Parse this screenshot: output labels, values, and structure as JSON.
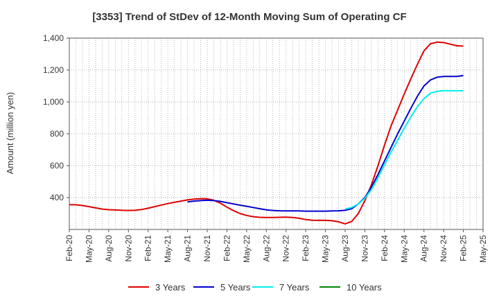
{
  "chart_data": {
    "type": "line",
    "title": "[3353]  Trend of StDev of 12-Month Moving Sum of Operating CF",
    "xlabel": "",
    "ylabel": "Amount (million yen)",
    "ylim": [
      200,
      1400
    ],
    "yticks": [
      400,
      600,
      800,
      1000,
      1200,
      1400
    ],
    "ytick_labels": [
      "400",
      "600",
      "800",
      "1,000",
      "1,200",
      "1,400"
    ],
    "x_tick_labels": [
      "Feb-20",
      "May-20",
      "Aug-20",
      "Nov-20",
      "Feb-21",
      "May-21",
      "Aug-21",
      "Nov-21",
      "Feb-22",
      "May-22",
      "Aug-22",
      "Nov-22",
      "Feb-23",
      "May-23",
      "Aug-23",
      "Nov-23",
      "Feb-24",
      "May-24",
      "Aug-24",
      "Nov-24",
      "Feb-25",
      "May-25"
    ],
    "grid": true,
    "legend_position": "bottom",
    "colors": {
      "3 Years": "#dd0000",
      "5 Years": "#0000cc",
      "7 Years": "#00eeee",
      "10 Years": "#008800"
    },
    "series": [
      {
        "name": "3 Years",
        "color": "#dd0000",
        "points": [
          [
            "Feb-20",
            355
          ],
          [
            "Mar-20",
            355
          ],
          [
            "Apr-20",
            350
          ],
          [
            "May-20",
            343
          ],
          [
            "Jun-20",
            335
          ],
          [
            "Jul-20",
            328
          ],
          [
            "Aug-20",
            324
          ],
          [
            "Sep-20",
            322
          ],
          [
            "Oct-20",
            320
          ],
          [
            "Nov-20",
            319
          ],
          [
            "Dec-20",
            320
          ],
          [
            "Jan-21",
            325
          ],
          [
            "Feb-21",
            333
          ],
          [
            "Mar-21",
            343
          ],
          [
            "Apr-21",
            353
          ],
          [
            "May-21",
            362
          ],
          [
            "Jun-21",
            370
          ],
          [
            "Jul-21",
            378
          ],
          [
            "Aug-21",
            385
          ],
          [
            "Sep-21",
            390
          ],
          [
            "Oct-21",
            393
          ],
          [
            "Nov-21",
            392
          ],
          [
            "Dec-21",
            383
          ],
          [
            "Jan-22",
            365
          ],
          [
            "Feb-22",
            340
          ],
          [
            "Mar-22",
            318
          ],
          [
            "Apr-22",
            300
          ],
          [
            "May-22",
            288
          ],
          [
            "Jun-22",
            280
          ],
          [
            "Jul-22",
            276
          ],
          [
            "Aug-22",
            275
          ],
          [
            "Sep-22",
            275
          ],
          [
            "Oct-22",
            276
          ],
          [
            "Nov-22",
            277
          ],
          [
            "Dec-22",
            275
          ],
          [
            "Jan-23",
            270
          ],
          [
            "Feb-23",
            262
          ],
          [
            "Mar-23",
            258
          ],
          [
            "Apr-23",
            257
          ],
          [
            "May-23",
            257
          ],
          [
            "Jun-23",
            255
          ],
          [
            "Jul-23",
            248
          ],
          [
            "Aug-23",
            235
          ],
          [
            "Sep-23",
            250
          ],
          [
            "Oct-23",
            300
          ],
          [
            "Nov-23",
            380
          ],
          [
            "Dec-23",
            480
          ],
          [
            "Jan-24",
            600
          ],
          [
            "Feb-24",
            730
          ],
          [
            "Mar-24",
            850
          ],
          [
            "Apr-24",
            950
          ],
          [
            "May-24",
            1050
          ],
          [
            "Jun-24",
            1145
          ],
          [
            "Jul-24",
            1235
          ],
          [
            "Aug-24",
            1320
          ],
          [
            "Sep-24",
            1365
          ],
          [
            "Oct-24",
            1375
          ],
          [
            "Nov-24",
            1372
          ],
          [
            "Dec-24",
            1362
          ],
          [
            "Jan-25",
            1352
          ],
          [
            "Feb-25",
            1350
          ]
        ]
      },
      {
        "name": "5 Years",
        "color": "#0000cc",
        "points": [
          [
            "Aug-21",
            373
          ],
          [
            "Sep-21",
            378
          ],
          [
            "Oct-21",
            381
          ],
          [
            "Nov-21",
            383
          ],
          [
            "Dec-21",
            381
          ],
          [
            "Jan-22",
            376
          ],
          [
            "Feb-22",
            368
          ],
          [
            "Mar-22",
            360
          ],
          [
            "Apr-22",
            352
          ],
          [
            "May-22",
            345
          ],
          [
            "Jun-22",
            338
          ],
          [
            "Jul-22",
            330
          ],
          [
            "Aug-22",
            323
          ],
          [
            "Sep-22",
            319
          ],
          [
            "Oct-22",
            317
          ],
          [
            "Nov-22",
            316
          ],
          [
            "Dec-22",
            316
          ],
          [
            "Jan-23",
            316
          ],
          [
            "Feb-23",
            315
          ],
          [
            "Mar-23",
            315
          ],
          [
            "Apr-23",
            315
          ],
          [
            "May-23",
            315
          ],
          [
            "Jun-23",
            316
          ],
          [
            "Jul-23",
            317
          ],
          [
            "Aug-23",
            320
          ],
          [
            "Sep-23",
            330
          ],
          [
            "Oct-23",
            360
          ],
          [
            "Nov-23",
            400
          ],
          [
            "Dec-23",
            465
          ],
          [
            "Jan-24",
            545
          ],
          [
            "Feb-24",
            630
          ],
          [
            "Mar-24",
            715
          ],
          [
            "Apr-24",
            800
          ],
          [
            "May-24",
            880
          ],
          [
            "Jun-24",
            960
          ],
          [
            "Jul-24",
            1035
          ],
          [
            "Aug-24",
            1100
          ],
          [
            "Sep-24",
            1138
          ],
          [
            "Oct-24",
            1155
          ],
          [
            "Nov-24",
            1160
          ],
          [
            "Dec-24",
            1160
          ],
          [
            "Jan-25",
            1160
          ],
          [
            "Feb-25",
            1165
          ]
        ]
      },
      {
        "name": "7 Years",
        "color": "#00eeee",
        "points": [
          [
            "Aug-23",
            328
          ],
          [
            "Sep-23",
            338
          ],
          [
            "Oct-23",
            360
          ],
          [
            "Nov-23",
            395
          ],
          [
            "Dec-23",
            450
          ],
          [
            "Jan-24",
            525
          ],
          [
            "Feb-24",
            605
          ],
          [
            "Mar-24",
            685
          ],
          [
            "Apr-24",
            760
          ],
          [
            "May-24",
            835
          ],
          [
            "Jun-24",
            905
          ],
          [
            "Jul-24",
            970
          ],
          [
            "Aug-24",
            1020
          ],
          [
            "Sep-24",
            1055
          ],
          [
            "Oct-24",
            1066
          ],
          [
            "Nov-24",
            1070
          ],
          [
            "Dec-24",
            1070
          ],
          [
            "Jan-25",
            1070
          ],
          [
            "Feb-25",
            1070
          ]
        ]
      },
      {
        "name": "10 Years",
        "color": "#008800",
        "points": []
      }
    ]
  }
}
